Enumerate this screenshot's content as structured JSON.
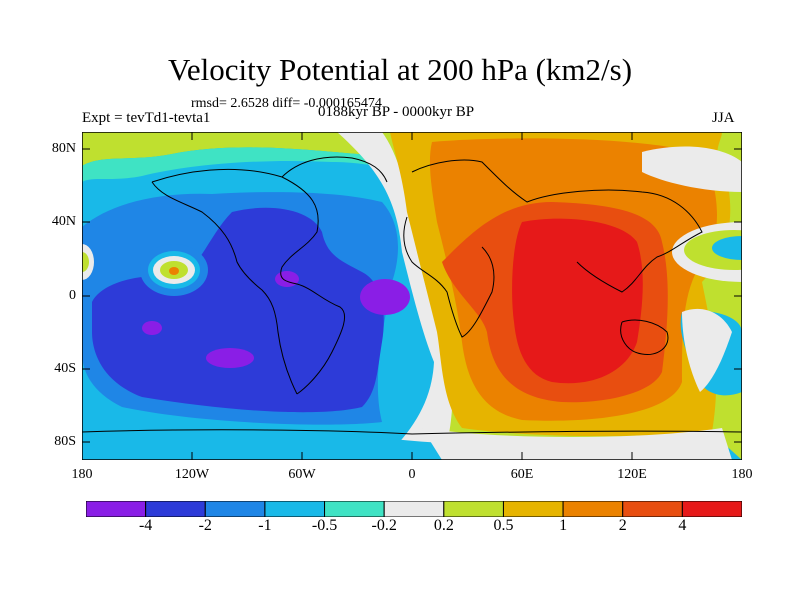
{
  "title": "Velocity Potential at 200 hPa (km2/s)",
  "stats": "rmsd= 2.6528 diff= -0.000165474",
  "left_label": "Expt = tevTd1-tevta1",
  "center_label": "0188kyr BP - 0000kyr BP",
  "right_label": "JJA",
  "lat_ticks": [
    "80N",
    "40N",
    "0",
    "40S",
    "80S"
  ],
  "lon_ticks": [
    "180",
    "120W",
    "60W",
    "0",
    "60E",
    "120E",
    "180"
  ],
  "colorbar": {
    "colors": [
      "#8a1ee6",
      "#2d3bd8",
      "#1f86e6",
      "#19b9e8",
      "#3fe3c4",
      "#ebebeb",
      "#bfe02f",
      "#e6b400",
      "#eb8200",
      "#e84e10",
      "#e61919"
    ],
    "labels": [
      "-4",
      "-2",
      "-1",
      "-0.5",
      "-0.2",
      "0.2",
      "0.5",
      "1",
      "2",
      "4"
    ]
  }
}
